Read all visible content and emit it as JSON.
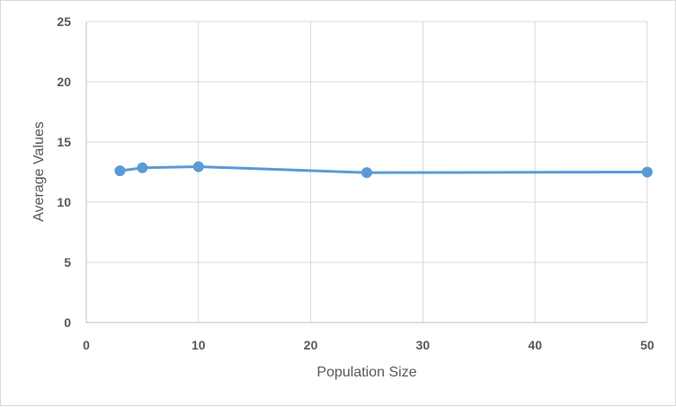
{
  "chart_data": {
    "type": "scatter",
    "title": "",
    "xlabel": "Population Size",
    "ylabel": "Average Values",
    "xlim": [
      0,
      50
    ],
    "ylim": [
      0,
      25
    ],
    "x_ticks": [
      "0",
      "10",
      "20",
      "30",
      "40",
      "50"
    ],
    "y_ticks": [
      "0",
      "5",
      "10",
      "15",
      "20",
      "25"
    ],
    "grid": true,
    "legend": "none",
    "line_color": "#5b9bd5",
    "series": [
      {
        "x": [
          3,
          5,
          10,
          25,
          50
        ],
        "y": [
          12.6,
          12.85,
          12.95,
          12.45,
          12.5
        ]
      }
    ]
  }
}
